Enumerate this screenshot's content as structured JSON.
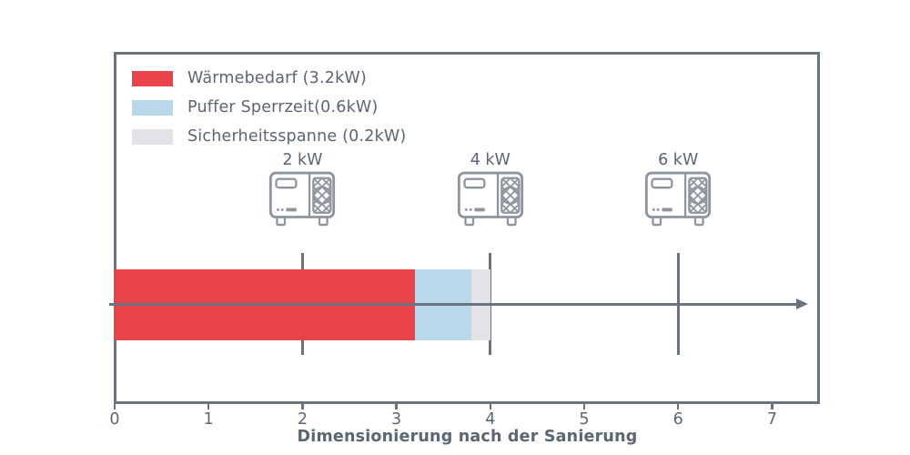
{
  "legend": {
    "items": [
      {
        "label": "Wärmebedarf (3.2kW)",
        "color": "#e9444a"
      },
      {
        "label": "Puffer Sperrzeit(0.6kW)",
        "color": "#b8d9ea"
      },
      {
        "label": "Sicherheitsspanne (0.2kW)",
        "color": "#e2e3e9"
      }
    ]
  },
  "chart_data": {
    "type": "bar",
    "orientation": "horizontal",
    "xlabel": "Dimensionierung nach der Sanierung",
    "ylabel": "",
    "xlim": [
      0,
      7.5
    ],
    "xticks": [
      0,
      1,
      2,
      3,
      4,
      5,
      6,
      7
    ],
    "grid": false,
    "legend_position": "upper-left",
    "segments": [
      {
        "name": "Wärmebedarf",
        "value": 3.2,
        "unit": "kW",
        "color": "#e9444a"
      },
      {
        "name": "Puffer Sperrzeit",
        "value": 0.6,
        "unit": "kW",
        "color": "#b8d9ea"
      },
      {
        "name": "Sicherheitsspanne",
        "value": 0.2,
        "unit": "kW",
        "color": "#e2e3e9"
      }
    ],
    "bar_total_kw": 4.0,
    "pumps": [
      {
        "label": "2 kW",
        "x": 2
      },
      {
        "label": "4 kW",
        "x": 4
      },
      {
        "label": "6 kW",
        "x": 6
      }
    ],
    "colors": {
      "axis": "#6a7380",
      "text": "#5b6573",
      "icon": "#8e959e"
    }
  }
}
